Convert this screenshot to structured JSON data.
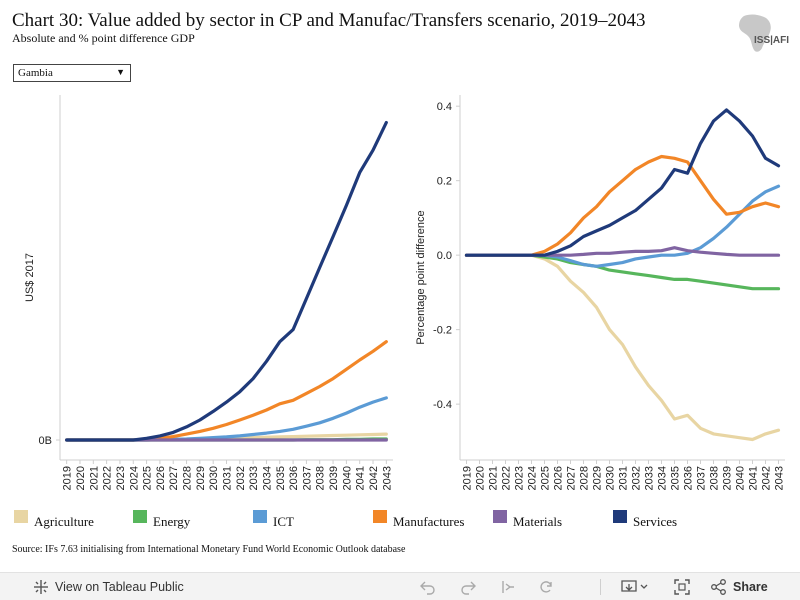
{
  "header": {
    "title": "Chart 30: Value added by sector in CP and Manufac/Transfers scenario, 2019–2043",
    "subtitle": "Absolute and % point difference GDP",
    "logo_text": "ISS|AFI"
  },
  "filter": {
    "selected": "Gambia"
  },
  "source": "Source: IFs 7.63 initialising from International Monetary Fund World Economic Outlook database",
  "toolbar": {
    "view_label": "View on Tableau Public",
    "share_label": "Share",
    "icons": [
      "undo-icon",
      "redo-icon",
      "revert-icon",
      "refresh-icon",
      "download-icon",
      "fullscreen-icon",
      "share-icon"
    ]
  },
  "chart_data": [
    {
      "type": "line",
      "title": "",
      "xlabel": "",
      "ylabel": "US$ 2017",
      "y_tick_labels": [
        "0B"
      ],
      "y_range_note": "absolute values, only 0B labelled",
      "x": [
        "2019",
        "2020",
        "2021",
        "2022",
        "2023",
        "2024",
        "2025",
        "2026",
        "2027",
        "2028",
        "2029",
        "2030",
        "2031",
        "2032",
        "2033",
        "2034",
        "2035",
        "2036",
        "2037",
        "2038",
        "2039",
        "2040",
        "2041",
        "2042",
        "2043"
      ],
      "ylim": [
        0,
        1
      ],
      "grid": false,
      "series": [
        {
          "name": "Agriculture",
          "color": "#e8d5a3",
          "values": [
            0,
            0,
            0,
            0,
            0,
            0,
            0,
            0.001,
            0.002,
            0.002,
            0.003,
            0.004,
            0.005,
            0.006,
            0.007,
            0.008,
            0.009,
            0.01,
            0.011,
            0.012,
            0.013,
            0.014,
            0.015,
            0.016,
            0.017
          ]
        },
        {
          "name": "Energy",
          "color": "#57b65c",
          "values": [
            0,
            0,
            0,
            0,
            0,
            0,
            0,
            0,
            0,
            0,
            0,
            0,
            0,
            0,
            0,
            0,
            0,
            0,
            0.001,
            0.001,
            0.001,
            0.002,
            0.002,
            0.003,
            0.003
          ]
        },
        {
          "name": "ICT",
          "color": "#5b9bd5",
          "values": [
            0,
            0,
            0,
            0,
            0,
            0,
            0,
            0.001,
            0.002,
            0.003,
            0.005,
            0.007,
            0.009,
            0.012,
            0.016,
            0.02,
            0.025,
            0.031,
            0.04,
            0.05,
            0.063,
            0.078,
            0.095,
            0.11,
            0.122
          ]
        },
        {
          "name": "Manufactures",
          "color": "#f28627",
          "values": [
            0,
            0,
            0,
            0,
            0,
            0,
            0.002,
            0.005,
            0.01,
            0.017,
            0.025,
            0.034,
            0.045,
            0.058,
            0.072,
            0.087,
            0.105,
            0.115,
            0.135,
            0.155,
            0.178,
            0.205,
            0.232,
            0.257,
            0.285
          ]
        },
        {
          "name": "Materials",
          "color": "#8064a2",
          "values": [
            0,
            0,
            0,
            0,
            0,
            0,
            0,
            0,
            0,
            0,
            0,
            0,
            0,
            0,
            0,
            0,
            0,
            0,
            0,
            0,
            0,
            0,
            0,
            0,
            0
          ]
        },
        {
          "name": "Services",
          "color": "#1f3a7a",
          "values": [
            0,
            0,
            0,
            0,
            0,
            0,
            0.005,
            0.012,
            0.022,
            0.038,
            0.058,
            0.083,
            0.11,
            0.14,
            0.178,
            0.228,
            0.285,
            0.32,
            0.41,
            0.5,
            0.59,
            0.68,
            0.775,
            0.84,
            0.92
          ]
        }
      ]
    },
    {
      "type": "line",
      "title": "",
      "xlabel": "",
      "ylabel": "Percentage point difference",
      "y_tick_labels": [
        "0.4",
        "0.2",
        "0.0",
        "-0.2",
        "-0.4"
      ],
      "y_ticks": [
        0.4,
        0.2,
        0.0,
        -0.2,
        -0.4
      ],
      "x": [
        "2019",
        "2020",
        "2021",
        "2022",
        "2023",
        "2024",
        "2025",
        "2026",
        "2027",
        "2028",
        "2029",
        "2030",
        "2031",
        "2032",
        "2033",
        "2034",
        "2035",
        "2036",
        "2037",
        "2038",
        "2039",
        "2040",
        "2041",
        "2042",
        "2043"
      ],
      "ylim": [
        -0.55,
        0.43
      ],
      "grid": false,
      "series": [
        {
          "name": "Agriculture",
          "color": "#e8d5a3",
          "values": [
            0,
            0,
            0,
            0,
            0,
            0,
            -0.01,
            -0.03,
            -0.07,
            -0.1,
            -0.14,
            -0.2,
            -0.24,
            -0.3,
            -0.35,
            -0.39,
            -0.44,
            -0.43,
            -0.465,
            -0.48,
            -0.485,
            -0.49,
            -0.495,
            -0.48,
            -0.47
          ]
        },
        {
          "name": "Energy",
          "color": "#57b65c",
          "values": [
            0,
            0,
            0,
            0,
            0,
            0,
            -0.005,
            -0.01,
            -0.02,
            -0.025,
            -0.03,
            -0.04,
            -0.045,
            -0.05,
            -0.055,
            -0.06,
            -0.065,
            -0.065,
            -0.07,
            -0.075,
            -0.08,
            -0.085,
            -0.09,
            -0.09,
            -0.09
          ]
        },
        {
          "name": "ICT",
          "color": "#5b9bd5",
          "values": [
            0,
            0,
            0,
            0,
            0,
            0,
            0,
            -0.005,
            -0.015,
            -0.025,
            -0.03,
            -0.025,
            -0.02,
            -0.01,
            -0.005,
            0,
            0,
            0.005,
            0.02,
            0.045,
            0.075,
            0.11,
            0.145,
            0.17,
            0.185
          ]
        },
        {
          "name": "Manufactures",
          "color": "#f28627",
          "values": [
            0,
            0,
            0,
            0,
            0,
            0,
            0.01,
            0.03,
            0.06,
            0.1,
            0.13,
            0.17,
            0.2,
            0.23,
            0.25,
            0.265,
            0.26,
            0.25,
            0.2,
            0.15,
            0.11,
            0.115,
            0.13,
            0.14,
            0.13
          ]
        },
        {
          "name": "Materials",
          "color": "#8064a2",
          "values": [
            0,
            0,
            0,
            0,
            0,
            0,
            0,
            0,
            0,
            0.002,
            0.005,
            0.005,
            0.008,
            0.01,
            0.01,
            0.012,
            0.02,
            0.012,
            0.008,
            0.005,
            0.002,
            0,
            0,
            0,
            0
          ]
        },
        {
          "name": "Services",
          "color": "#1f3a7a",
          "values": [
            0,
            0,
            0,
            0,
            0,
            0,
            0,
            0.01,
            0.025,
            0.05,
            0.065,
            0.08,
            0.1,
            0.12,
            0.15,
            0.18,
            0.23,
            0.22,
            0.3,
            0.36,
            0.39,
            0.36,
            0.32,
            0.26,
            0.24
          ]
        }
      ]
    }
  ]
}
